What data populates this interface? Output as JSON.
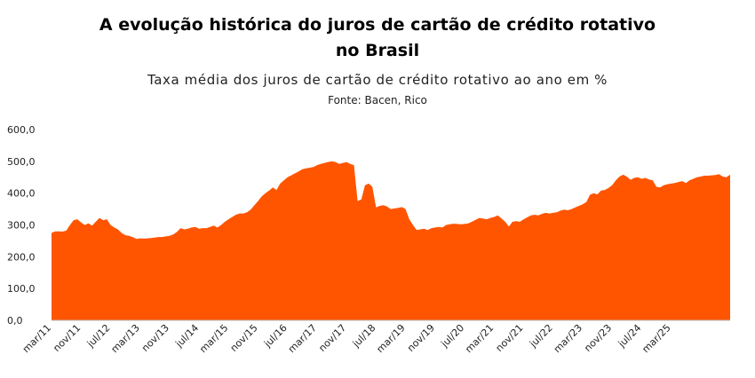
{
  "chart_data": {
    "type": "area",
    "title_line1": "A evolução histórica do juros de cartão de crédito rotativo",
    "title_line2": "no Brasil",
    "subtitle": "Taxa média dos juros de cartão de crédito rotativo ao ano em %",
    "source": "Fonte: Bacen, Rico",
    "xlabel": "",
    "ylabel": "",
    "ylim": [
      0,
      600
    ],
    "y_ticks": [
      "0,0",
      "100,0",
      "200,0",
      "300,0",
      "400,0",
      "500,0",
      "600,0"
    ],
    "x_tick_labels": [
      "mar/11",
      "nov/11",
      "jul/12",
      "mar/13",
      "nov/13",
      "jul/14",
      "mar/15",
      "nov/15",
      "jul/16",
      "mar/17",
      "nov/17",
      "jul/18",
      "mar/19",
      "nov/19",
      "jul/20",
      "mar/21",
      "nov/21",
      "jul/22",
      "mar/23",
      "nov/23",
      "jul/24",
      "mar/25"
    ],
    "color": "#ff5500",
    "grid": false,
    "series": [
      {
        "start": "2011-03",
        "frequency": "monthly",
        "values": [
          275,
          280,
          280,
          279,
          282,
          300,
          315,
          318,
          308,
          300,
          305,
          298,
          310,
          322,
          315,
          318,
          300,
          292,
          286,
          275,
          268,
          266,
          262,
          256,
          258,
          257,
          258,
          259,
          260,
          262,
          262,
          264,
          266,
          270,
          278,
          290,
          286,
          288,
          292,
          294,
          288,
          290,
          290,
          294,
          298,
          292,
          300,
          310,
          318,
          325,
          332,
          336,
          336,
          340,
          348,
          362,
          375,
          390,
          400,
          408,
          418,
          410,
          430,
          440,
          450,
          456,
          462,
          468,
          475,
          478,
          480,
          482,
          488,
          492,
          495,
          498,
          500,
          498,
          492,
          495,
          498,
          492,
          488,
          375,
          380,
          425,
          430,
          420,
          355,
          360,
          362,
          358,
          350,
          352,
          354,
          356,
          350,
          318,
          300,
          284,
          286,
          288,
          284,
          290,
          292,
          294,
          292,
          300,
          302,
          304,
          303,
          302,
          303,
          305,
          310,
          316,
          322,
          320,
          318,
          322,
          325,
          330,
          320,
          310,
          295,
          310,
          312,
          310,
          318,
          324,
          330,
          332,
          330,
          335,
          338,
          336,
          338,
          340,
          345,
          348,
          346,
          350,
          355,
          360,
          365,
          372,
          395,
          400,
          396,
          408,
          410,
          416,
          425,
          440,
          452,
          458,
          452,
          442,
          448,
          450,
          445,
          448,
          443,
          440,
          420,
          418,
          425,
          428,
          430,
          432,
          435,
          438,
          432,
          440,
          445,
          450,
          452,
          455,
          455,
          456,
          457,
          460,
          452,
          450,
          458
        ]
      }
    ]
  }
}
